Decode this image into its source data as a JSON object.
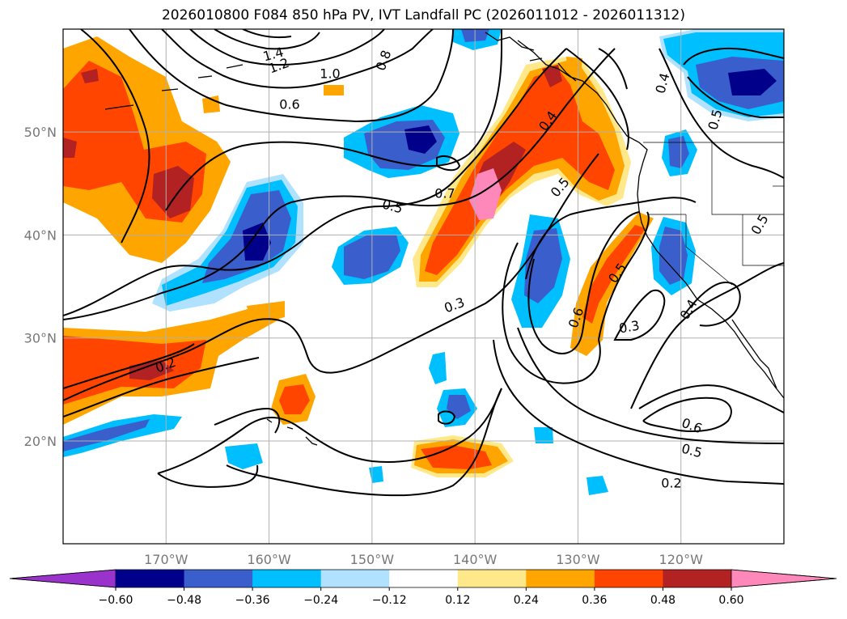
{
  "title": "2026010800 F084 850 hPa PV, IVT Landfall PC (2026011012 - 2026011312)",
  "map": {
    "lat_ticks": [
      {
        "label": "50°N",
        "lat": 50
      },
      {
        "label": "40°N",
        "lat": 40
      },
      {
        "label": "30°N",
        "lat": 30
      },
      {
        "label": "20°N",
        "lat": 20
      }
    ],
    "lon_ticks": [
      {
        "label": "170°W",
        "lon": -170
      },
      {
        "label": "160°W",
        "lon": -160
      },
      {
        "label": "150°W",
        "lon": -150
      },
      {
        "label": "140°W",
        "lon": -140
      },
      {
        "label": "130°W",
        "lon": -130
      },
      {
        "label": "120°W",
        "lon": -120
      }
    ],
    "lon_range": [
      -180,
      -110
    ],
    "lat_range": [
      10,
      60
    ],
    "grid": true,
    "contour_labels": [
      "1.4",
      "1.2",
      "1.0",
      "0.8",
      "0.6",
      "0.5",
      "0.7",
      "0.4",
      "0.5",
      "0.3",
      "0.6",
      "0.5",
      "0.3",
      "0.2",
      "0.6",
      "0.5",
      "0.2",
      "0.5",
      "0.4",
      "0.5",
      "0.4"
    ]
  },
  "colorbar": {
    "ticks": [
      "−0.60",
      "−0.48",
      "−0.36",
      "−0.24",
      "−0.12",
      "0.12",
      "0.24",
      "0.36",
      "0.48",
      "0.60"
    ],
    "colors": [
      "#9933cc",
      "#00008b",
      "#3a5fcd",
      "#00bfff",
      "#b0e2ff",
      "#ffffff",
      "#ffe88a",
      "#ffa500",
      "#ff4500",
      "#b22222",
      "#ff88bb"
    ],
    "extend": "both"
  }
}
